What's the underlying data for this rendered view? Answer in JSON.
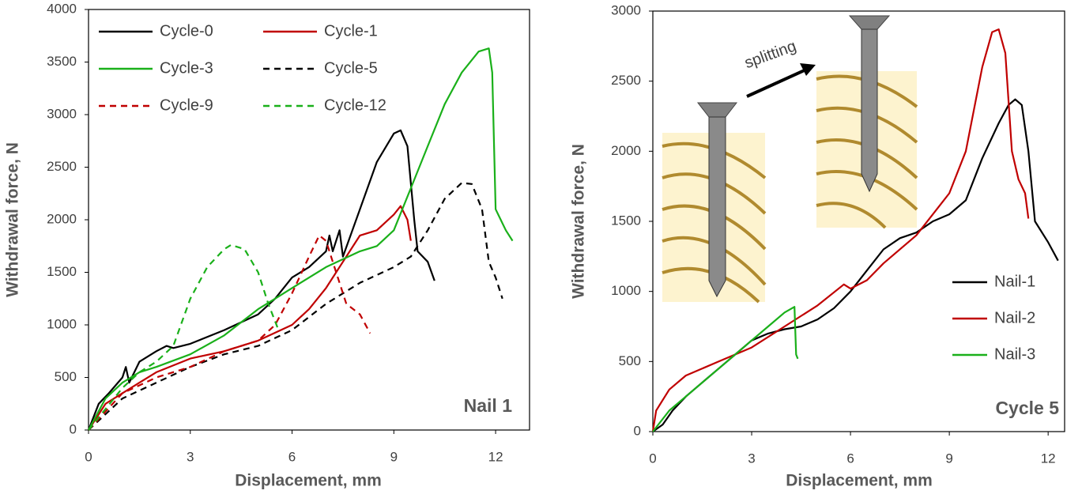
{
  "chart_data": [
    {
      "type": "line",
      "xlabel": "Displacement,  mm",
      "ylabel": "Withdrawal force, N",
      "annotation": "Nail 1",
      "xlim": [
        0,
        13
      ],
      "xticks": [
        0,
        3,
        6,
        9,
        12
      ],
      "ylim": [
        0,
        4000
      ],
      "yticks": [
        0,
        500,
        1000,
        1500,
        2000,
        2500,
        3000,
        3500,
        4000
      ],
      "legend": "upper-left",
      "legend_columns": 2,
      "grid": false,
      "series": [
        {
          "name": "Cycle-0",
          "color": "#000000",
          "linestyle": "solid",
          "x": [
            0,
            0.3,
            0.6,
            1.0,
            1.1,
            1.2,
            1.5,
            2,
            2.3,
            2.5,
            3,
            4,
            5,
            5.5,
            6,
            6.5,
            7,
            7.1,
            7.2,
            7.4,
            7.5,
            8,
            8.5,
            9,
            9.2,
            9.4,
            9.6,
            9.7,
            10,
            10.2
          ],
          "values": [
            0,
            250,
            350,
            500,
            600,
            450,
            650,
            750,
            800,
            780,
            820,
            950,
            1100,
            1250,
            1450,
            1550,
            1700,
            1850,
            1700,
            1900,
            1650,
            2100,
            2550,
            2820,
            2850,
            2700,
            2000,
            1700,
            1600,
            1420
          ]
        },
        {
          "name": "Cycle-1",
          "color": "#c00000",
          "linestyle": "solid",
          "x": [
            0,
            0.5,
            1,
            1.5,
            2,
            3,
            4,
            5,
            6,
            6.5,
            7,
            7.5,
            8,
            8.5,
            9,
            9.2,
            9.4,
            9.5
          ],
          "values": [
            0,
            250,
            350,
            450,
            550,
            680,
            750,
            850,
            1000,
            1150,
            1350,
            1600,
            1850,
            1900,
            2050,
            2130,
            2000,
            1800
          ]
        },
        {
          "name": "Cycle-3",
          "color": "#1ab01a",
          "linestyle": "solid",
          "x": [
            0,
            0.5,
            1,
            1.5,
            2,
            3,
            4,
            5,
            5.5,
            6,
            7,
            8,
            8.5,
            9,
            9.5,
            10,
            10.5,
            11,
            11.5,
            11.8,
            11.9,
            12,
            12.3,
            12.5
          ],
          "values": [
            0,
            300,
            450,
            550,
            600,
            720,
            900,
            1150,
            1250,
            1350,
            1550,
            1700,
            1750,
            1900,
            2300,
            2700,
            3100,
            3400,
            3600,
            3630,
            3400,
            2100,
            1900,
            1800
          ]
        },
        {
          "name": "Cycle-5",
          "color": "#000000",
          "linestyle": "dashed",
          "x": [
            0,
            0.5,
            1,
            2,
            3,
            4,
            5,
            6,
            7,
            8,
            9,
            9.5,
            10,
            10.5,
            11,
            11.3,
            11.6,
            11.8,
            12,
            12.2
          ],
          "values": [
            0,
            150,
            300,
            450,
            600,
            720,
            800,
            950,
            1200,
            1400,
            1550,
            1650,
            1900,
            2200,
            2350,
            2340,
            2100,
            1600,
            1450,
            1250
          ]
        },
        {
          "name": "Cycle-9",
          "color": "#c00000",
          "linestyle": "dashed",
          "x": [
            0,
            1,
            2,
            3,
            4,
            5,
            5.5,
            6,
            6.5,
            6.8,
            7,
            7.3,
            7.6,
            8,
            8.3
          ],
          "values": [
            0,
            350,
            500,
            600,
            750,
            850,
            1000,
            1300,
            1650,
            1850,
            1800,
            1500,
            1200,
            1100,
            920
          ]
        },
        {
          "name": "Cycle-12",
          "color": "#1ab01a",
          "linestyle": "dashed",
          "x": [
            0,
            0.5,
            1,
            1.5,
            2,
            2.5,
            3,
            3.5,
            4,
            4.2,
            4.6,
            5,
            5.3,
            5.6
          ],
          "values": [
            0,
            200,
            400,
            550,
            650,
            800,
            1250,
            1550,
            1720,
            1760,
            1720,
            1500,
            1200,
            950
          ]
        }
      ]
    },
    {
      "type": "line",
      "xlabel": "Displacement,  mm",
      "ylabel": "Withdrawal force, N",
      "annotation": "Cycle 5",
      "inset_label": "splitting",
      "xlim": [
        0,
        12.5
      ],
      "xticks": [
        0,
        3,
        6,
        9,
        12
      ],
      "ylim": [
        0,
        3000
      ],
      "yticks": [
        0,
        500,
        1000,
        1500,
        2000,
        2500,
        3000
      ],
      "legend": "lower-right",
      "legend_columns": 1,
      "grid": false,
      "series": [
        {
          "name": "Nail-1",
          "color": "#000000",
          "linestyle": "solid",
          "x": [
            0,
            0.3,
            0.6,
            1,
            1.5,
            2,
            2.5,
            3,
            3.5,
            4,
            4.5,
            5,
            5.5,
            6,
            6.5,
            7,
            7.5,
            8,
            8.5,
            9,
            9.5,
            10,
            10.5,
            10.8,
            11,
            11.2,
            11.4,
            11.6,
            12,
            12.3
          ],
          "values": [
            0,
            50,
            150,
            250,
            350,
            450,
            550,
            650,
            700,
            730,
            750,
            800,
            880,
            1000,
            1150,
            1300,
            1380,
            1420,
            1500,
            1550,
            1650,
            1950,
            2200,
            2330,
            2370,
            2330,
            2000,
            1500,
            1350,
            1220
          ]
        },
        {
          "name": "Nail-2",
          "color": "#c00000",
          "linestyle": "solid",
          "x": [
            0,
            0.1,
            0.5,
            1,
            2,
            3,
            4,
            5,
            5.8,
            6,
            6.5,
            7,
            8,
            8.5,
            9,
            9.5,
            10,
            10.3,
            10.5,
            10.7,
            10.9,
            11.1,
            11.3,
            11.4
          ],
          "values": [
            0,
            150,
            300,
            400,
            500,
            600,
            750,
            900,
            1050,
            1020,
            1080,
            1200,
            1400,
            1550,
            1700,
            2000,
            2600,
            2850,
            2870,
            2700,
            2000,
            1800,
            1700,
            1520
          ]
        },
        {
          "name": "Nail-3",
          "color": "#1ab01a",
          "linestyle": "solid",
          "x": [
            0,
            0.5,
            1,
            2,
            3,
            3.5,
            4,
            4.3,
            4.35,
            4.4
          ],
          "values": [
            0,
            150,
            250,
            450,
            650,
            750,
            850,
            890,
            550,
            520
          ]
        }
      ]
    }
  ]
}
